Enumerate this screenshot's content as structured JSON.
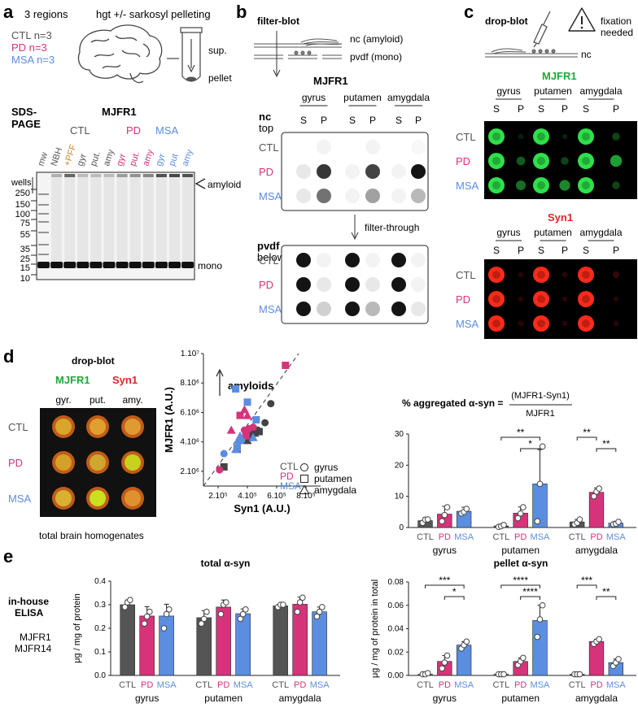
{
  "colors": {
    "ctl": "#555555",
    "pd": "#d6337a",
    "msa": "#5b8de0",
    "green": "#22a83a",
    "red": "#e0252b",
    "pff": "#c8842a"
  },
  "panel_a": {
    "label": "a",
    "regions_title": "3 regions",
    "pelleting_title": "hgt +/- sarkosyl pelleting",
    "ctl_n": "CTL n=3",
    "pd_n": "PD n=3",
    "msa_n": "MSA n=3",
    "sup": "sup.",
    "pellet": "pellet",
    "sds_line1": "SDS-",
    "sds_line2": "PAGE",
    "antibody": "MJFR1",
    "group_ctl": "CTL",
    "group_pd": "PD",
    "group_msa": "MSA",
    "lanes": [
      "mw",
      "NBH",
      "+PFF",
      "gyr",
      "put.",
      "amy",
      "gyr",
      "put.",
      "amy",
      "gyr",
      "put",
      "amy"
    ],
    "wells": "wells",
    "amyloid": "amyloid",
    "mono": "mono",
    "mw_markers": [
      "250",
      "150",
      "100",
      "75",
      "55",
      "35",
      "25",
      "15",
      "10"
    ]
  },
  "panel_b": {
    "label": "b",
    "title": "filter-blot",
    "nc_label": "nc (amyloid)",
    "pvdf_label": "pvdf (mono)",
    "antibody": "MJFR1",
    "regions": [
      "gyrus",
      "putamen",
      "amygdala"
    ],
    "s": "S",
    "p": "P",
    "nc_line1": "nc",
    "nc_line2": "top",
    "pvdf_line1": "pvdf",
    "pvdf_line2": "below",
    "filter_through": "filter-through",
    "rows": [
      "CTL",
      "PD",
      "MSA"
    ]
  },
  "panel_c": {
    "label": "c",
    "title": "drop-blot",
    "fixation_line1": "fixation",
    "fixation_line2": "needed",
    "nc": "nc",
    "mjfr1": "MJFR1",
    "syn1": "Syn1",
    "regions": [
      "gyrus",
      "putamen",
      "amygdala"
    ],
    "s": "S",
    "p": "P",
    "rows": [
      "CTL",
      "PD",
      "MSA"
    ]
  },
  "panel_d": {
    "label": "d",
    "dropblot_title": "drop-blot",
    "mjfr1": "MJFR1",
    "syn1": "Syn1",
    "cols": [
      "gyr.",
      "put.",
      "amy."
    ],
    "rows": [
      "CTL",
      "PD",
      "MSA"
    ],
    "caption": "total brain homogenates",
    "formula_left": "% aggregated α-syn =",
    "formula_num": "(MJFR1-Syn1)",
    "formula_den": "MJFR1"
  },
  "panel_e": {
    "label": "e",
    "side_line1": "in-house",
    "side_line2": "ELISA",
    "side_line3": "MJFR1",
    "side_line4": "MJFR14"
  },
  "chart_data": [
    {
      "type": "scatter",
      "title": "",
      "annotation": "amyloids",
      "xlabel": "Syn1 (A.U.)",
      "ylabel": "MJFR1 (A.U.)",
      "xticks": [
        "2.10⁵",
        "4.10⁵",
        "6.10⁵",
        "8.10⁵"
      ],
      "yticks": [
        "2.10⁶",
        "4.10⁶",
        "6.10⁶",
        "8.10⁶",
        "1.10⁷"
      ],
      "xlim": [
        100000,
        900000
      ],
      "ylim": [
        1000000,
        10000000
      ],
      "legend_groups": [
        "CTL",
        "PD",
        "MSA"
      ],
      "legend_shapes": [
        "gyrus",
        "putamen",
        "amygdala"
      ],
      "series": [
        {
          "name": "CTL",
          "shape": "circle",
          "points": [
            [
              420000,
              4500000
            ],
            [
              470000,
              4800000
            ],
            [
              520000,
              5300000
            ],
            [
              560000,
              6600000
            ],
            [
              440000,
              4900000
            ]
          ]
        },
        {
          "name": "CTL",
          "shape": "square",
          "points": [
            [
              240000,
              2300000
            ],
            [
              330000,
              3500000
            ],
            [
              410000,
              4300000
            ],
            [
              480000,
              4700000
            ]
          ]
        },
        {
          "name": "CTL",
          "shape": "triangle",
          "points": [
            [
              400000,
              4100000
            ],
            [
              430000,
              4700000
            ],
            [
              450000,
              4600000
            ]
          ]
        },
        {
          "name": "PD",
          "shape": "circle",
          "points": [
            [
              210000,
              2100000
            ],
            [
              380000,
              4800000
            ],
            [
              410000,
              4900000
            ],
            [
              440000,
              5000000
            ]
          ]
        },
        {
          "name": "PD",
          "shape": "square",
          "points": [
            [
              350000,
              5800000
            ],
            [
              660000,
              9200000
            ],
            [
              390000,
              4400000
            ]
          ]
        },
        {
          "name": "PD",
          "shape": "triangle",
          "points": [
            [
              290000,
              4800000
            ],
            [
              380000,
              6200000
            ],
            [
              400000,
              5800000
            ]
          ]
        },
        {
          "name": "MSA",
          "shape": "circle",
          "points": [
            [
              240000,
              3200000
            ],
            [
              340000,
              4000000
            ],
            [
              360000,
              4100000
            ]
          ]
        },
        {
          "name": "MSA",
          "shape": "square",
          "points": [
            [
              320000,
              7600000
            ],
            [
              400000,
              6700000
            ],
            [
              460000,
              5500000
            ],
            [
              330000,
              3600000
            ]
          ]
        },
        {
          "name": "MSA",
          "shape": "triangle",
          "points": [
            [
              320000,
              3500000
            ],
            [
              350000,
              4400000
            ],
            [
              440000,
              4300000
            ]
          ]
        }
      ]
    },
    {
      "type": "bar",
      "title": "% aggregated α-syn",
      "ylim": [
        0,
        30
      ],
      "yticks": [
        "0",
        "10",
        "20",
        "30"
      ],
      "regions": [
        "gyrus",
        "putamen",
        "amygdala"
      ],
      "groups": [
        "CTL",
        "PD",
        "MSA"
      ],
      "values": [
        [
          2.2,
          4.3,
          5.2
        ],
        [
          0.5,
          4.6,
          14.0
        ],
        [
          1.8,
          11.3,
          1.4
        ]
      ],
      "errors": [
        [
          1.0,
          2.5,
          1.3
        ],
        [
          0.4,
          2.0,
          11.0
        ],
        [
          0.8,
          1.4,
          0.6
        ]
      ],
      "points": [
        [
          [
            1.5,
            2.5,
            2.6
          ],
          [
            2.0,
            4.0,
            6.5
          ],
          [
            4.5,
            5.0,
            6.0
          ]
        ],
        [
          [
            0.2,
            0.4,
            0.8
          ],
          [
            3.0,
            4.5,
            6.5
          ],
          [
            2.0,
            14.0,
            26.0
          ]
        ],
        [
          [
            1.0,
            1.5,
            2.6
          ],
          [
            10.0,
            11.5,
            12.5
          ],
          [
            1.0,
            1.2,
            1.8
          ]
        ]
      ],
      "significance": [
        {
          "region": 1,
          "from": 0,
          "to": 2,
          "label": "**"
        },
        {
          "region": 1,
          "from": 1,
          "to": 2,
          "label": "*"
        },
        {
          "region": 2,
          "from": 0,
          "to": 1,
          "label": "**"
        },
        {
          "region": 2,
          "from": 1,
          "to": 2,
          "label": "**"
        }
      ]
    },
    {
      "type": "bar",
      "title": "total α-syn",
      "ylabel": "μg / mg of protein",
      "ylim": [
        0,
        0.4
      ],
      "yticks": [
        "0.0",
        "0.1",
        "0.2",
        "0.3",
        "0.4"
      ],
      "regions": [
        "gyrus",
        "putamen",
        "amygdala"
      ],
      "groups": [
        "CTL",
        "PD",
        "MSA"
      ],
      "values": [
        [
          0.3,
          0.252,
          0.252
        ],
        [
          0.245,
          0.29,
          0.262
        ],
        [
          0.295,
          0.302,
          0.27
        ]
      ],
      "errors": [
        [
          0.02,
          0.04,
          0.05
        ],
        [
          0.03,
          0.03,
          0.02
        ],
        [
          0.01,
          0.03,
          0.02
        ]
      ],
      "points": [
        [
          [
            0.29,
            0.31,
            0.32
          ],
          [
            0.22,
            0.25,
            0.27
          ],
          [
            0.2,
            0.26,
            0.28
          ]
        ],
        [
          [
            0.22,
            0.24,
            0.27
          ],
          [
            0.26,
            0.3,
            0.31
          ],
          [
            0.24,
            0.26,
            0.28
          ]
        ],
        [
          [
            0.29,
            0.3,
            0.3
          ],
          [
            0.27,
            0.31,
            0.33
          ],
          [
            0.25,
            0.27,
            0.29
          ]
        ]
      ],
      "significance": []
    },
    {
      "type": "bar",
      "title": "pellet α-syn",
      "ylabel": "μg / mg of protein in total",
      "ylim": [
        0,
        0.08
      ],
      "yticks": [
        "0.00",
        "0.02",
        "0.04",
        "0.06",
        "0.08"
      ],
      "regions": [
        "gyrus",
        "putamen",
        "amygdala"
      ],
      "groups": [
        "CTL",
        "PD",
        "MSA"
      ],
      "values": [
        [
          0.001,
          0.012,
          0.026
        ],
        [
          0.001,
          0.012,
          0.047
        ],
        [
          0.001,
          0.029,
          0.011
        ]
      ],
      "errors": [
        [
          0.0005,
          0.005,
          0.003
        ],
        [
          0.0005,
          0.003,
          0.013
        ],
        [
          0.0005,
          0.002,
          0.003
        ]
      ],
      "points": [
        [
          [
            0.001,
            0.001,
            0.002
          ],
          [
            0.006,
            0.011,
            0.017
          ],
          [
            0.023,
            0.026,
            0.029
          ]
        ],
        [
          [
            0.001,
            0.001,
            0.001
          ],
          [
            0.009,
            0.012,
            0.015
          ],
          [
            0.033,
            0.048,
            0.06
          ]
        ],
        [
          [
            0.001,
            0.001,
            0.001
          ],
          [
            0.027,
            0.029,
            0.031
          ],
          [
            0.008,
            0.011,
            0.014
          ]
        ]
      ],
      "significance": [
        {
          "region": 0,
          "from": 0,
          "to": 2,
          "label": "***"
        },
        {
          "region": 0,
          "from": 1,
          "to": 2,
          "label": "*"
        },
        {
          "region": 1,
          "from": 0,
          "to": 2,
          "label": "****"
        },
        {
          "region": 1,
          "from": 1,
          "to": 2,
          "label": "****"
        },
        {
          "region": 2,
          "from": 0,
          "to": 1,
          "label": "***"
        },
        {
          "region": 2,
          "from": 1,
          "to": 2,
          "label": "**"
        }
      ]
    }
  ]
}
